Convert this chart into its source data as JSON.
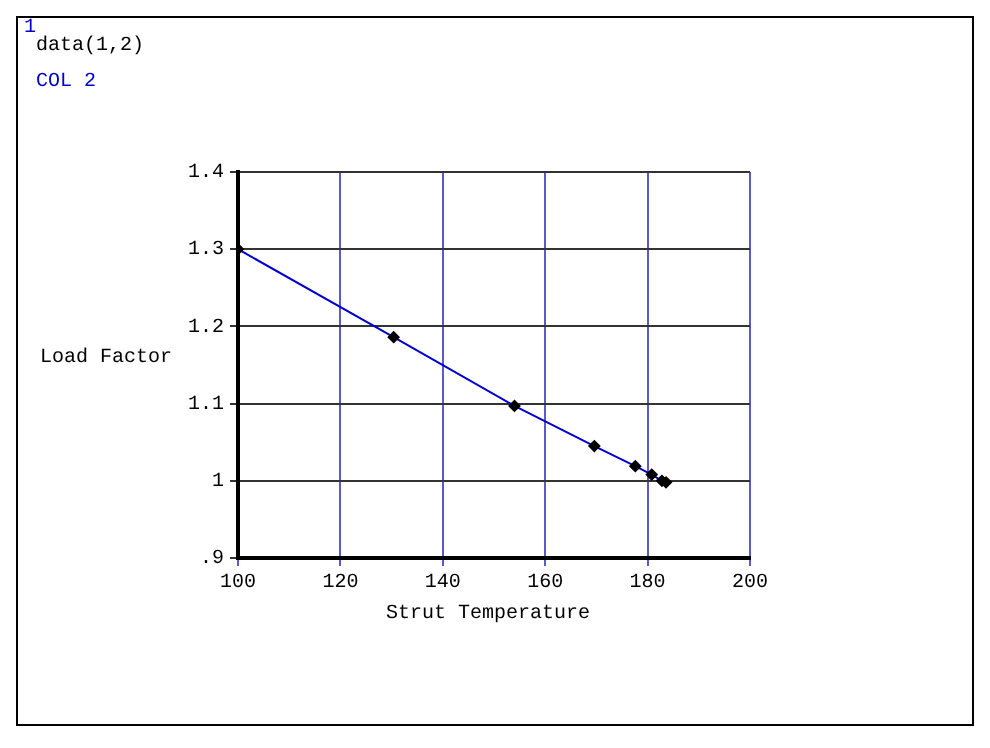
{
  "chart_data": {
    "type": "line",
    "title": "data(1,2)",
    "xlabel": "Strut Temperature",
    "ylabel": "Load Factor",
    "annotations": [
      "1"
    ],
    "series": [
      {
        "name": "COL 2",
        "color": "#0000cc",
        "x": [
          100,
          130.4,
          154,
          169.6,
          177.6,
          180.8,
          182.8,
          183.6
        ],
        "values": [
          1.3,
          1.186,
          1.097,
          1.045,
          1.019,
          1.008,
          1.0,
          0.998
        ]
      }
    ],
    "xlim": [
      100,
      200
    ],
    "xticks": [
      100,
      120,
      140,
      160,
      180,
      200
    ],
    "ylim": [
      0.9,
      1.4
    ],
    "yticks": [
      {
        "value": 0.9,
        "label": ".9"
      },
      {
        "value": 1,
        "label": "1"
      },
      1.1,
      1.2,
      1.3,
      1.4
    ],
    "grid": true,
    "legend": "top left",
    "marker": "diamond",
    "line_style": "solid"
  }
}
